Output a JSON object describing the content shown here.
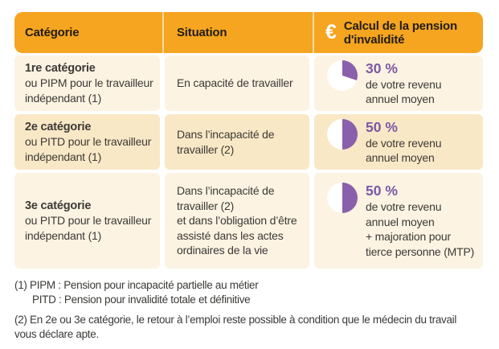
{
  "colors": {
    "page_bg": "#FFFFFF",
    "header_bg": "#F5A51F",
    "header_text": "#221C12",
    "divider": "rgba(255,255,255,0.6)",
    "row_light": "#FCF3E2",
    "row_dark": "#F9E8C6",
    "body_text": "#3C3A37",
    "purple_text": "#7C59A6",
    "pie_fill": "#8A5FAB",
    "pie_bg": "#FFFFFF"
  },
  "table": {
    "headers": [
      {
        "label": "Catégorie"
      },
      {
        "label": "Situation"
      },
      {
        "label": "Calcul de la pension\nd'invalidité",
        "euro_symbol": "€",
        "icon": "euro-icon"
      }
    ],
    "rows": [
      {
        "category_title": "1re catégorie",
        "category_rest": "ou PIPM pour le travailleur\nindépendant (1)",
        "situation": "En capacité de travailler",
        "percent": "30 %",
        "pie_percent": 30,
        "calc_rest": "de votre revenu\nannuel moyen"
      },
      {
        "category_title": "2e catégorie",
        "category_rest": "ou PITD pour le travailleur\nindépendant (1)",
        "situation": "Dans l’incapacité de\ntravailler (2)",
        "percent": "50 %",
        "pie_percent": 50,
        "calc_rest": "de votre revenu\nannuel moyen"
      },
      {
        "category_title": "3e catégorie",
        "category_rest": "ou PITD pour le travailleur\nindépendant (1)",
        "situation": "Dans l’incapacité de\ntravailler (2)\net dans l’obligation d’être\nassisté dans les actes\nordinaires de la vie",
        "percent": "50 %",
        "pie_percent": 50,
        "calc_rest": "de votre revenu\nannuel moyen\n+ majoration pour\ntierce personne (MTP)"
      }
    ]
  },
  "footnotes": {
    "note1_line1": "(1) PIPM : Pension pour incapacité partielle au métier",
    "note1_line2": "PITD : Pension pour invalidité totale et définitive",
    "note2": "(2) En 2e ou 3e catégorie, le retour à l’emploi reste possible à condition que le médecin du travail\nvous déclare apte."
  },
  "chart_data": {
    "type": "table",
    "title": "Calcul de la pension d'invalidité",
    "columns": [
      "Catégorie",
      "Situation",
      "Calcul de la pension d'invalidité"
    ],
    "rows": [
      [
        "1re catégorie ou PIPM pour le travailleur indépendant (1)",
        "En capacité de travailler",
        "30 % de votre revenu annuel moyen"
      ],
      [
        "2e catégorie ou PITD pour le travailleur indépendant (1)",
        "Dans l’incapacité de travailler (2)",
        "50 % de votre revenu annuel moyen"
      ],
      [
        "3e catégorie ou PITD pour le travailleur indépendant (1)",
        "Dans l’incapacité de travailler (2) et dans l’obligation d’être assisté dans les actes ordinaires de la vie",
        "50 % de votre revenu annuel moyen + majoration pour tierce personne (MTP)"
      ]
    ],
    "pie_values_percent": [
      30,
      50,
      50
    ]
  }
}
